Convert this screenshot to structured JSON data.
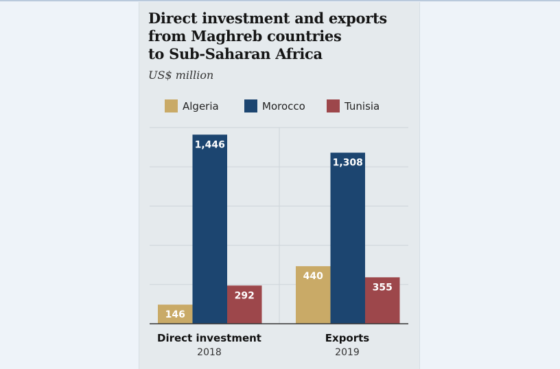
{
  "chart_data": {
    "type": "bar",
    "title": "Direct investment and exports from Maghreb countries to Sub-Saharan Africa",
    "title_lines": [
      "Direct investment and exports",
      "from Maghreb countries",
      "to Sub-Saharan Africa"
    ],
    "subtitle": "US$ million",
    "categories": [
      {
        "label": "Direct investment",
        "year": "2018"
      },
      {
        "label": "Exports",
        "year": "2019"
      }
    ],
    "series": [
      {
        "name": "Algeria",
        "color": "#c9aa67",
        "values": [
          146,
          440
        ],
        "labels": [
          "146",
          "440"
        ]
      },
      {
        "name": "Morocco",
        "color": "#1c4570",
        "values": [
          1446,
          1308
        ],
        "labels": [
          "1,446",
          "1,308"
        ]
      },
      {
        "name": "Tunisia",
        "color": "#9d474b",
        "values": [
          292,
          355
        ],
        "labels": [
          "292",
          "355"
        ]
      }
    ],
    "ylim": [
      0,
      1500
    ],
    "grid_step": 300,
    "grid": true,
    "legend_position": "top"
  }
}
